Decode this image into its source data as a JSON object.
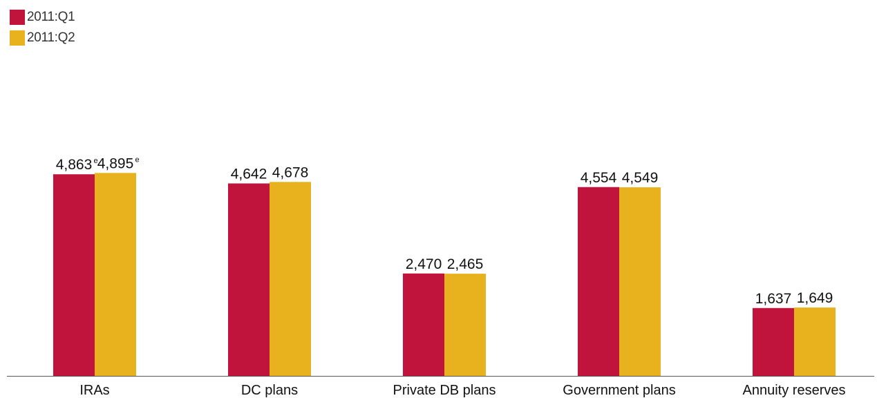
{
  "chart_data": {
    "type": "bar",
    "categories": [
      "IRAs",
      "DC plans",
      "Private DB plans",
      "Government plans",
      "Annuity reserves"
    ],
    "series": [
      {
        "name": "2011:Q1",
        "color": "#c0143c",
        "values": [
          4863,
          4642,
          2470,
          4554,
          1637
        ],
        "labels": [
          "4,863",
          "4,642",
          "2,470",
          "4,554",
          "1,637"
        ],
        "estimate_marks": [
          "e",
          "",
          "",
          "",
          ""
        ]
      },
      {
        "name": "2011:Q2",
        "color": "#e8b21e",
        "values": [
          4895,
          4678,
          2465,
          4549,
          1649
        ],
        "labels": [
          "4,895",
          "4,678",
          "2,465",
          "4,549",
          "1,649"
        ],
        "estimate_marks": [
          "e",
          "",
          "",
          "",
          ""
        ]
      }
    ],
    "ylim": [
      0,
      5400
    ],
    "grid": false,
    "legend_position": "top-left"
  }
}
